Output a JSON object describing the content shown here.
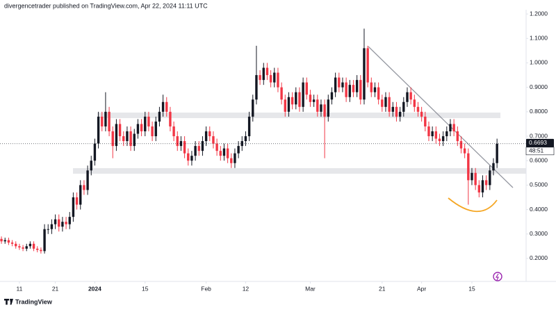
{
  "chart_data": {
    "type": "candlestick",
    "title": "divergencetrader published on TradingView.com, Apr 22, 2024 11:11 UTC",
    "up_color": "#131722",
    "down_color": "#f23645",
    "grid": false,
    "open": [
      0.28,
      0.27,
      0.275,
      0.265,
      0.26,
      0.25,
      0.245,
      0.24,
      0.25,
      0.26,
      0.24,
      0.235,
      0.23,
      0.32,
      0.32,
      0.34,
      0.36,
      0.33,
      0.35,
      0.34,
      0.37,
      0.45,
      0.42,
      0.5,
      0.48,
      0.56,
      0.6,
      0.67,
      0.78,
      0.74,
      0.8,
      0.72,
      0.66,
      0.75,
      0.7,
      0.68,
      0.72,
      0.66,
      0.71,
      0.75,
      0.72,
      0.78,
      0.74,
      0.7,
      0.76,
      0.8,
      0.84,
      0.8,
      0.74,
      0.7,
      0.66,
      0.68,
      0.63,
      0.6,
      0.62,
      0.66,
      0.64,
      0.68,
      0.72,
      0.7,
      0.67,
      0.64,
      0.62,
      0.65,
      0.61,
      0.59,
      0.63,
      0.66,
      0.68,
      0.7,
      0.78,
      0.85,
      0.95,
      0.93,
      0.98,
      0.95,
      0.92,
      0.96,
      0.9,
      0.85,
      0.8,
      0.86,
      0.83,
      0.88,
      0.82,
      0.92,
      0.87,
      0.84,
      0.85,
      0.8,
      0.83,
      0.78,
      0.85,
      0.88,
      0.94,
      0.9,
      0.92,
      0.86,
      0.91,
      0.88,
      0.93,
      0.85,
      1.06,
      0.92,
      0.88,
      0.9,
      0.85,
      0.82,
      0.86,
      0.8,
      0.82,
      0.78,
      0.8,
      0.84,
      0.88,
      0.85,
      0.82,
      0.8,
      0.78,
      0.74,
      0.7,
      0.72,
      0.69,
      0.68,
      0.7,
      0.72,
      0.75,
      0.72,
      0.68,
      0.65,
      0.63,
      0.52,
      0.55,
      0.5,
      0.47,
      0.52,
      0.5,
      0.56,
      0.59
    ],
    "high": [
      0.29,
      0.285,
      0.285,
      0.275,
      0.27,
      0.26,
      0.255,
      0.26,
      0.27,
      0.27,
      0.25,
      0.245,
      0.34,
      0.34,
      0.36,
      0.38,
      0.38,
      0.37,
      0.37,
      0.39,
      0.47,
      0.47,
      0.52,
      0.52,
      0.58,
      0.62,
      0.69,
      0.8,
      0.8,
      0.88,
      0.82,
      0.74,
      0.77,
      0.77,
      0.72,
      0.74,
      0.74,
      0.73,
      0.77,
      0.77,
      0.8,
      0.8,
      0.76,
      0.78,
      0.82,
      0.87,
      0.86,
      0.82,
      0.76,
      0.72,
      0.7,
      0.7,
      0.65,
      0.64,
      0.68,
      0.68,
      0.7,
      0.74,
      0.74,
      0.72,
      0.69,
      0.66,
      0.67,
      0.67,
      0.63,
      0.65,
      0.68,
      0.7,
      0.72,
      0.8,
      0.87,
      1.07,
      0.97,
      1.0,
      1.0,
      0.97,
      0.98,
      0.98,
      0.92,
      0.87,
      0.88,
      0.88,
      0.9,
      0.9,
      0.94,
      0.94,
      0.89,
      0.87,
      0.87,
      0.85,
      0.85,
      0.87,
      0.9,
      0.96,
      0.96,
      0.94,
      0.94,
      0.93,
      0.93,
      0.95,
      0.95,
      1.14,
      1.07,
      0.94,
      0.92,
      0.92,
      0.87,
      0.88,
      0.88,
      0.84,
      0.84,
      0.82,
      0.86,
      0.9,
      0.9,
      0.87,
      0.84,
      0.82,
      0.8,
      0.76,
      0.74,
      0.74,
      0.71,
      0.72,
      0.74,
      0.77,
      0.77,
      0.74,
      0.7,
      0.67,
      0.65,
      0.57,
      0.57,
      0.52,
      0.54,
      0.54,
      0.58,
      0.61,
      0.69
    ],
    "low": [
      0.26,
      0.26,
      0.255,
      0.25,
      0.24,
      0.235,
      0.23,
      0.23,
      0.24,
      0.23,
      0.225,
      0.22,
      0.22,
      0.3,
      0.3,
      0.32,
      0.31,
      0.31,
      0.32,
      0.32,
      0.35,
      0.4,
      0.4,
      0.46,
      0.46,
      0.54,
      0.58,
      0.65,
      0.72,
      0.72,
      0.7,
      0.61,
      0.64,
      0.68,
      0.66,
      0.66,
      0.64,
      0.64,
      0.69,
      0.7,
      0.7,
      0.72,
      0.68,
      0.68,
      0.74,
      0.78,
      0.78,
      0.72,
      0.68,
      0.64,
      0.64,
      0.61,
      0.58,
      0.58,
      0.6,
      0.62,
      0.62,
      0.66,
      0.68,
      0.65,
      0.62,
      0.6,
      0.6,
      0.59,
      0.57,
      0.57,
      0.61,
      0.64,
      0.66,
      0.68,
      0.76,
      0.83,
      0.91,
      0.91,
      0.93,
      0.9,
      0.9,
      0.88,
      0.83,
      0.78,
      0.78,
      0.81,
      0.81,
      0.8,
      0.8,
      0.85,
      0.82,
      0.82,
      0.78,
      0.78,
      0.61,
      0.76,
      0.83,
      0.86,
      0.88,
      0.88,
      0.84,
      0.84,
      0.86,
      0.86,
      0.83,
      0.83,
      0.9,
      0.86,
      0.86,
      0.83,
      0.8,
      0.8,
      0.78,
      0.78,
      0.76,
      0.76,
      0.78,
      0.82,
      0.83,
      0.8,
      0.78,
      0.76,
      0.72,
      0.68,
      0.68,
      0.67,
      0.66,
      0.66,
      0.68,
      0.7,
      0.7,
      0.66,
      0.63,
      0.61,
      0.42,
      0.5,
      0.48,
      0.45,
      0.45,
      0.48,
      0.48,
      0.54,
      0.57
    ],
    "close": [
      0.27,
      0.275,
      0.265,
      0.26,
      0.25,
      0.245,
      0.24,
      0.25,
      0.26,
      0.24,
      0.235,
      0.23,
      0.32,
      0.32,
      0.34,
      0.36,
      0.33,
      0.35,
      0.34,
      0.37,
      0.45,
      0.42,
      0.5,
      0.48,
      0.56,
      0.6,
      0.67,
      0.78,
      0.74,
      0.8,
      0.72,
      0.66,
      0.75,
      0.7,
      0.68,
      0.72,
      0.66,
      0.71,
      0.75,
      0.72,
      0.78,
      0.74,
      0.7,
      0.76,
      0.8,
      0.84,
      0.8,
      0.74,
      0.7,
      0.66,
      0.68,
      0.63,
      0.6,
      0.62,
      0.66,
      0.64,
      0.68,
      0.72,
      0.7,
      0.67,
      0.64,
      0.62,
      0.65,
      0.61,
      0.59,
      0.63,
      0.66,
      0.68,
      0.7,
      0.78,
      0.85,
      0.95,
      0.93,
      0.98,
      0.95,
      0.92,
      0.96,
      0.9,
      0.85,
      0.8,
      0.86,
      0.83,
      0.88,
      0.82,
      0.92,
      0.87,
      0.84,
      0.85,
      0.8,
      0.83,
      0.78,
      0.85,
      0.88,
      0.94,
      0.9,
      0.92,
      0.86,
      0.91,
      0.88,
      0.93,
      0.85,
      1.06,
      0.92,
      0.88,
      0.9,
      0.85,
      0.82,
      0.86,
      0.8,
      0.82,
      0.78,
      0.8,
      0.84,
      0.88,
      0.85,
      0.82,
      0.8,
      0.78,
      0.74,
      0.7,
      0.72,
      0.69,
      0.68,
      0.7,
      0.72,
      0.75,
      0.72,
      0.68,
      0.65,
      0.63,
      0.52,
      0.55,
      0.5,
      0.47,
      0.52,
      0.5,
      0.56,
      0.59,
      0.6693
    ],
    "xlim": [
      -0.4,
      146.1
    ],
    "xticks": [
      {
        "value": 5,
        "label": "11"
      },
      {
        "value": 15,
        "label": "21"
      },
      {
        "value": 26,
        "label": "2024"
      },
      {
        "value": 40,
        "label": "15"
      },
      {
        "value": 57,
        "label": "Feb"
      },
      {
        "value": 68,
        "label": "12"
      },
      {
        "value": 86,
        "label": "Mar"
      },
      {
        "value": 106,
        "label": "21"
      },
      {
        "value": 117,
        "label": "Apr"
      },
      {
        "value": 131,
        "label": "15"
      }
    ],
    "ylim": [
      0.106,
      1.243
    ],
    "yticks": [
      {
        "value": 0.2,
        "label": "0.2000"
      },
      {
        "value": 0.3,
        "label": "0.3000"
      },
      {
        "value": 0.4,
        "label": "0.4000"
      },
      {
        "value": 0.5,
        "label": "0.5000"
      },
      {
        "value": 0.6,
        "label": "0.6000"
      },
      {
        "value": 0.7,
        "label": "0.7000"
      },
      {
        "value": 0.8,
        "label": "0.8000"
      },
      {
        "value": 0.9,
        "label": "0.9000"
      },
      {
        "value": 1.0,
        "label": "1.0000"
      },
      {
        "value": 1.1,
        "label": "1.1000"
      },
      {
        "value": 1.2,
        "label": "1.2000"
      }
    ],
    "price_label": {
      "value": 0.6693,
      "countdown": "48:51"
    }
  },
  "footer": {
    "brand": "TradingView"
  }
}
